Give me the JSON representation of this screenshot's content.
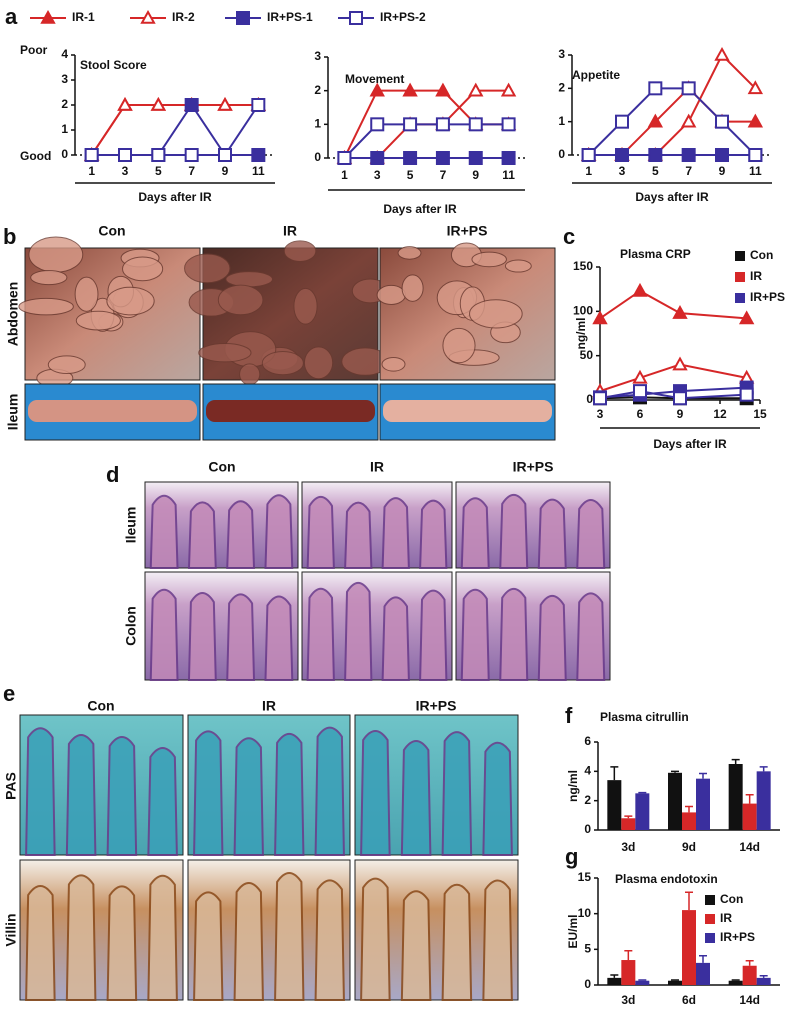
{
  "panel_labels": [
    "a",
    "b",
    "c",
    "d",
    "e",
    "f",
    "g"
  ],
  "photos_b": {
    "columns": [
      "Con",
      "IR",
      "IR+PS"
    ],
    "rows": [
      "Abdomen",
      "Ileum"
    ]
  },
  "histology_d": {
    "columns": [
      "Con",
      "IR",
      "IR+PS"
    ],
    "rows": [
      "Ileum",
      "Colon"
    ]
  },
  "staining_e": {
    "columns": [
      "Con",
      "IR",
      "IR+PS"
    ],
    "rows": [
      "PAS",
      "Villin"
    ]
  },
  "chart_data": [
    {
      "type": "line",
      "title": "Stool Score",
      "y_top_label": "Poor",
      "y_bottom_label": "Good",
      "xlabel": "Days after IR",
      "x": [
        1,
        3,
        5,
        7,
        9,
        11
      ],
      "xlim": [
        0,
        12
      ],
      "xticks": [
        1,
        3,
        5,
        7,
        9,
        11
      ],
      "ylim": [
        0,
        4
      ],
      "yticks": [
        0,
        1,
        2,
        3,
        4
      ],
      "series": [
        {
          "name": "IR-1",
          "color": "#d62728",
          "marker": "filled-triangle",
          "values": [
            0,
            2,
            2,
            2,
            2,
            2
          ]
        },
        {
          "name": "IR-2",
          "color": "#d62728",
          "marker": "open-triangle",
          "values": [
            0,
            2,
            2,
            2,
            2,
            2
          ]
        },
        {
          "name": "IR+PS-1",
          "color": "#3a2f9e",
          "marker": "filled-square",
          "values": [
            0,
            0,
            0,
            2,
            0,
            0
          ]
        },
        {
          "name": "IR+PS-2",
          "color": "#3a2f9e",
          "marker": "open-square",
          "values": [
            0,
            0,
            0,
            0,
            0,
            2
          ]
        }
      ]
    },
    {
      "type": "line",
      "title": "Movement",
      "xlabel": "Days after IR",
      "x": [
        1,
        3,
        5,
        7,
        9,
        11
      ],
      "xlim": [
        0,
        12
      ],
      "xticks": [
        1,
        3,
        5,
        7,
        9,
        11
      ],
      "ylim": [
        0,
        3
      ],
      "yticks": [
        0,
        1,
        2,
        3
      ],
      "series": [
        {
          "color": "#d62728",
          "marker": "filled-triangle",
          "values": [
            0,
            2,
            2,
            2,
            1,
            1
          ]
        },
        {
          "color": "#d62728",
          "marker": "open-triangle",
          "values": [
            0,
            0,
            1,
            1,
            2,
            2
          ]
        },
        {
          "color": "#3a2f9e",
          "marker": "filled-square",
          "values": [
            0,
            0,
            0,
            0,
            0,
            0
          ]
        },
        {
          "color": "#3a2f9e",
          "marker": "open-square",
          "values": [
            0,
            1,
            1,
            1,
            1,
            1
          ]
        }
      ]
    },
    {
      "type": "line",
      "title": "Appetite",
      "xlabel": "Days after IR",
      "x": [
        1,
        3,
        5,
        7,
        9,
        11
      ],
      "xlim": [
        0,
        12
      ],
      "xticks": [
        1,
        3,
        5,
        7,
        9,
        11
      ],
      "ylim": [
        0,
        3
      ],
      "yticks": [
        0,
        1,
        2,
        3
      ],
      "series": [
        {
          "color": "#d62728",
          "marker": "filled-triangle",
          "values": [
            0,
            0,
            1,
            2,
            1,
            1
          ]
        },
        {
          "color": "#d62728",
          "marker": "open-triangle",
          "values": [
            0,
            0,
            0,
            1,
            3,
            2
          ]
        },
        {
          "color": "#3a2f9e",
          "marker": "filled-square",
          "values": [
            0,
            0,
            0,
            0,
            0,
            0
          ]
        },
        {
          "color": "#3a2f9e",
          "marker": "open-square",
          "values": [
            0,
            1,
            2,
            2,
            1,
            0
          ]
        }
      ]
    },
    {
      "type": "line",
      "title": "Plasma CRP",
      "ylabel": "ng/ml",
      "xlabel": "Days after IR",
      "legend": "top-right",
      "x": [
        3,
        6,
        9,
        14
      ],
      "xlim": [
        3,
        15
      ],
      "xticks": [
        3,
        6,
        9,
        12,
        15
      ],
      "ylim": [
        0,
        150
      ],
      "yticks": [
        0,
        50,
        100,
        150
      ],
      "series": [
        {
          "name": "Con",
          "color": "#111111",
          "marker": "filled-square",
          "values": [
            2,
            3,
            2,
            2
          ]
        },
        {
          "name": "IR",
          "color": "#d62728",
          "marker": "filled-triangle",
          "values": [
            92,
            123,
            98,
            92
          ]
        },
        {
          "color": "#d62728",
          "marker": "open-triangle",
          "values": [
            10,
            25,
            40,
            25
          ]
        },
        {
          "name": "IR+PS",
          "color": "#3a2f9e",
          "marker": "filled-square",
          "values": [
            3,
            6,
            10,
            14
          ]
        },
        {
          "color": "#3a2f9e",
          "marker": "open-square",
          "values": [
            2,
            10,
            2,
            6
          ]
        }
      ]
    },
    {
      "type": "bar",
      "title": "Plasma citrullin",
      "ylabel": "ng/ml",
      "categories": [
        "3d",
        "9d",
        "14d"
      ],
      "ylim": [
        0,
        6
      ],
      "yticks": [
        0,
        2,
        4,
        6
      ],
      "series": [
        {
          "color": "#111111",
          "values": [
            3.4,
            3.9,
            4.5
          ],
          "errors": [
            0.9,
            0.1,
            0.3
          ]
        },
        {
          "color": "#d62728",
          "values": [
            0.8,
            1.2,
            1.8
          ],
          "errors": [
            0.15,
            0.4,
            0.6
          ]
        },
        {
          "color": "#3a2f9e",
          "values": [
            2.5,
            3.5,
            4.0
          ],
          "errors": [
            0.05,
            0.35,
            0.3
          ]
        }
      ]
    },
    {
      "type": "bar",
      "title": "Plasma endotoxin",
      "ylabel": "EU/ml",
      "legend": "top-right",
      "categories": [
        "3d",
        "6d",
        "14d"
      ],
      "ylim": [
        0,
        15
      ],
      "yticks": [
        0,
        5,
        10,
        15
      ],
      "series": [
        {
          "name": "Con",
          "color": "#111111",
          "values": [
            1.0,
            0.6,
            0.6
          ],
          "errors": [
            0.4,
            0.1,
            0.1
          ]
        },
        {
          "name": "IR",
          "color": "#d62728",
          "values": [
            3.5,
            10.5,
            2.7
          ],
          "errors": [
            1.3,
            2.5,
            0.7
          ]
        },
        {
          "name": "IR+PS",
          "color": "#3a2f9e",
          "values": [
            0.6,
            3.1,
            1.0
          ],
          "errors": [
            0.1,
            1.0,
            0.3
          ]
        }
      ]
    }
  ]
}
